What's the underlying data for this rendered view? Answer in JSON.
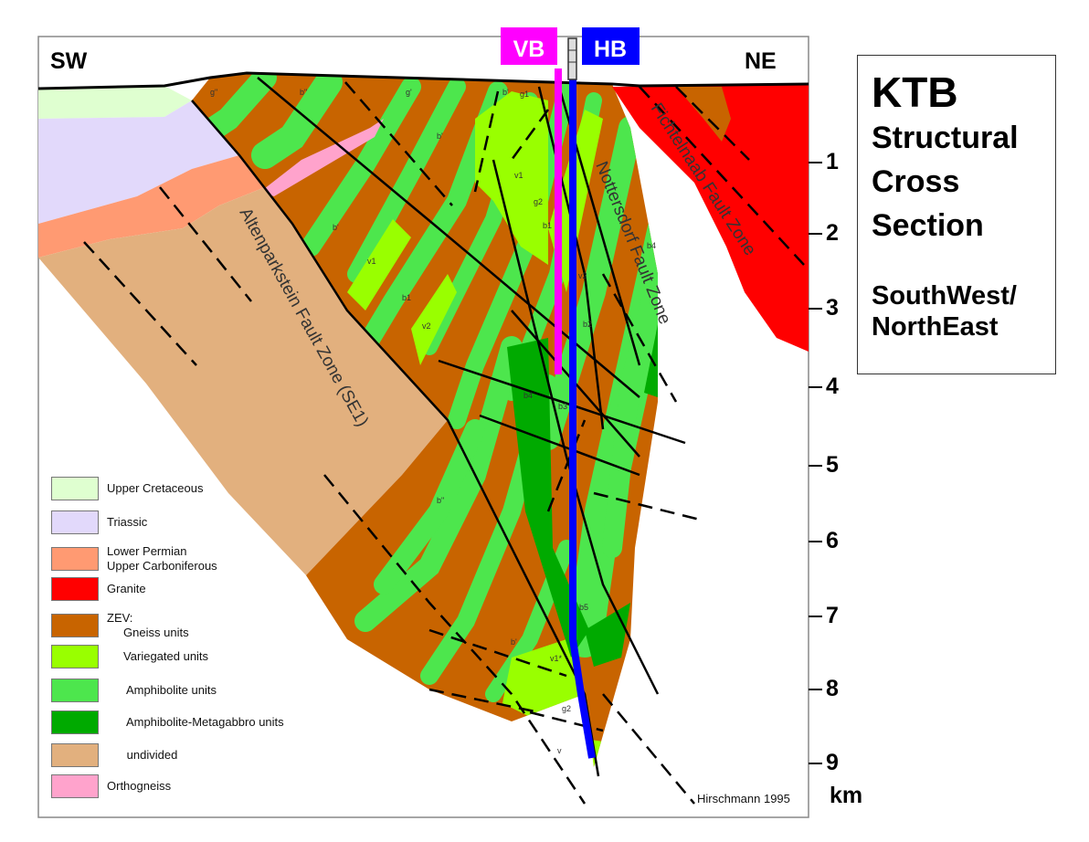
{
  "labels": {
    "sw": "SW",
    "ne": "NE",
    "vb": "VB",
    "hb": "HB",
    "credit": "Hirschmann 1995",
    "fault_altenparkstein": "Altenparkstein Fault Zone (SE1)",
    "fault_nottersdorf": "Nottersdorf Fault Zone",
    "fault_fichtelnaab": "Fichtelnaab Fault Zone"
  },
  "title": {
    "main": "KTB",
    "line1": "Structural",
    "line2": "Cross",
    "line3": "Section",
    "dir1": "SouthWest/",
    "dir2": "NorthEast"
  },
  "depth_axis": {
    "ticks": [
      "1",
      "2",
      "3",
      "4",
      "5",
      "6",
      "7",
      "8",
      "9"
    ],
    "unit": "km"
  },
  "unit_labels": [
    "g\"",
    "b\"",
    "g'",
    "b'",
    "g1",
    "b'",
    "v1",
    "g2",
    "b1",
    "b'",
    "v1",
    "b1",
    "v2",
    "v2",
    "b2",
    "b4",
    "b4",
    "b3",
    "b\"",
    "b5",
    "b'",
    "v1*",
    "g2",
    "v"
  ],
  "legend": [
    {
      "label": "Upper Cretaceous",
      "color": "#dfffd0"
    },
    {
      "label": "Triassic",
      "color": "#e2d9fb"
    },
    {
      "label": "Lower Permian\nUpper Carboniferous",
      "color": "#ff9a72"
    },
    {
      "label": "Granite",
      "color": "#ff0000"
    },
    {
      "label": "ZEV:\n     Gneiss units",
      "color": "#c86400"
    },
    {
      "label": "     Variegated units",
      "color": "#99ff00"
    },
    {
      "label": "      Amphibolite units",
      "color": "#4de64d"
    },
    {
      "label": "      Amphibolite-Metagabbro units",
      "color": "#00aa00"
    },
    {
      "label": "      undivided",
      "color": "#e2b07e"
    },
    {
      "label": "Orthogneiss",
      "color": "#ffa3cc"
    }
  ],
  "colors": {
    "vb": "#ff00ff",
    "hb": "#0000ff"
  }
}
